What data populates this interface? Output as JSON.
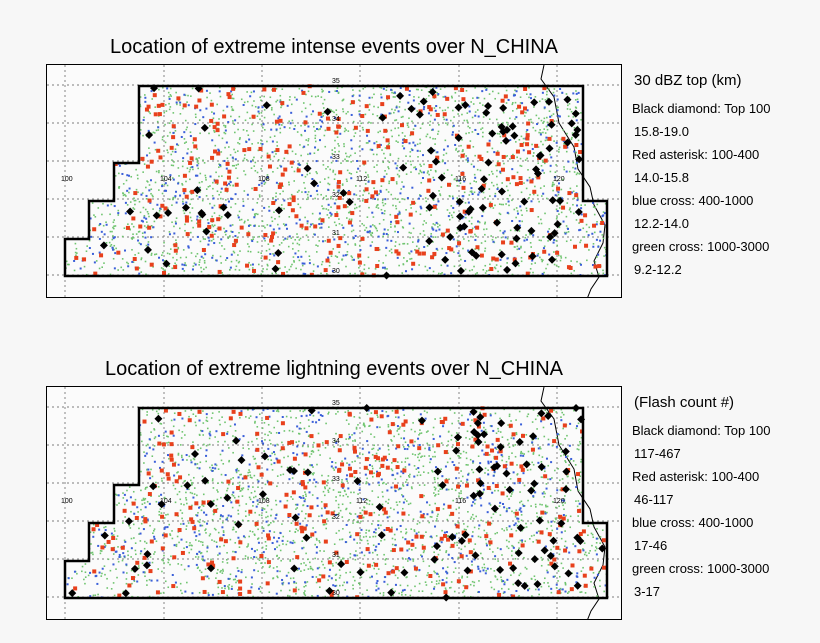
{
  "panels": [
    {
      "title": "Location of extreme intense events over N_CHINA",
      "legend": {
        "heading": "30 dBZ top (km)",
        "entries": [
          {
            "label": "Black diamond: Top 100",
            "range": "15.8-19.0"
          },
          {
            "label": "Red asterisk: 100-400",
            "range": "14.0-15.8"
          },
          {
            "label": "blue cross: 400-1000",
            "range": "12.2-14.0"
          },
          {
            "label": "green cross: 1000-3000",
            "range": "9.2-12.2"
          }
        ]
      },
      "counts": {
        "black": 100,
        "red": 300,
        "blue": 600,
        "green": 2000
      }
    },
    {
      "title": "Location of extreme lightning  events over N_CHINA",
      "legend": {
        "heading": "(Flash count #)",
        "entries": [
          {
            "label": "Black diamond: Top 100",
            "range": "117-467"
          },
          {
            "label": "Red asterisk: 100-400",
            "range": "46-117"
          },
          {
            "label": "blue cross: 400-1000",
            "range": "17-46"
          },
          {
            "label": "green cross: 1000-3000",
            "range": "3-17"
          }
        ]
      },
      "counts": {
        "black": 100,
        "red": 300,
        "blue": 600,
        "green": 2000
      }
    }
  ],
  "map": {
    "lon_labels": [
      "100",
      "104",
      "108",
      "112",
      "116",
      "120"
    ],
    "lat_labels": [
      "35",
      "34",
      "33",
      "32",
      "31",
      "30"
    ],
    "colors": {
      "black": "#000000",
      "red": "#e8401c",
      "blue": "#3a5fd9",
      "green": "#6fc46f",
      "grid": "#555555",
      "coast": "#000000"
    }
  }
}
